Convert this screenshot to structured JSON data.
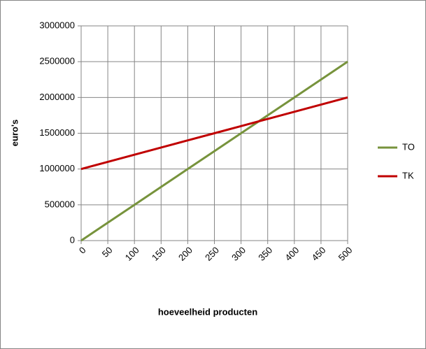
{
  "chart_data": {
    "type": "line",
    "x_label": "hoeveelheid producten",
    "y_label": "euro's",
    "x": [
      0,
      50,
      100,
      150,
      200,
      250,
      300,
      350,
      400,
      450,
      500
    ],
    "series": [
      {
        "name": "TO",
        "color": "#77933c",
        "values": [
          0,
          250000,
          500000,
          750000,
          1000000,
          1250000,
          1500000,
          1750000,
          2000000,
          2250000,
          2500000
        ]
      },
      {
        "name": "TK",
        "color": "#c00000",
        "values": [
          1000000,
          1100000,
          1200000,
          1300000,
          1400000,
          1500000,
          1600000,
          1700000,
          1800000,
          1900000,
          2000000
        ]
      }
    ],
    "xlim": [
      0,
      500
    ],
    "xticks": [
      0,
      50,
      100,
      150,
      200,
      250,
      300,
      350,
      400,
      450,
      500
    ],
    "ylim": [
      0,
      3000000
    ],
    "yticks": [
      0,
      500000,
      1000000,
      1500000,
      2000000,
      2500000,
      3000000
    ],
    "grid": true,
    "legend": "right"
  }
}
